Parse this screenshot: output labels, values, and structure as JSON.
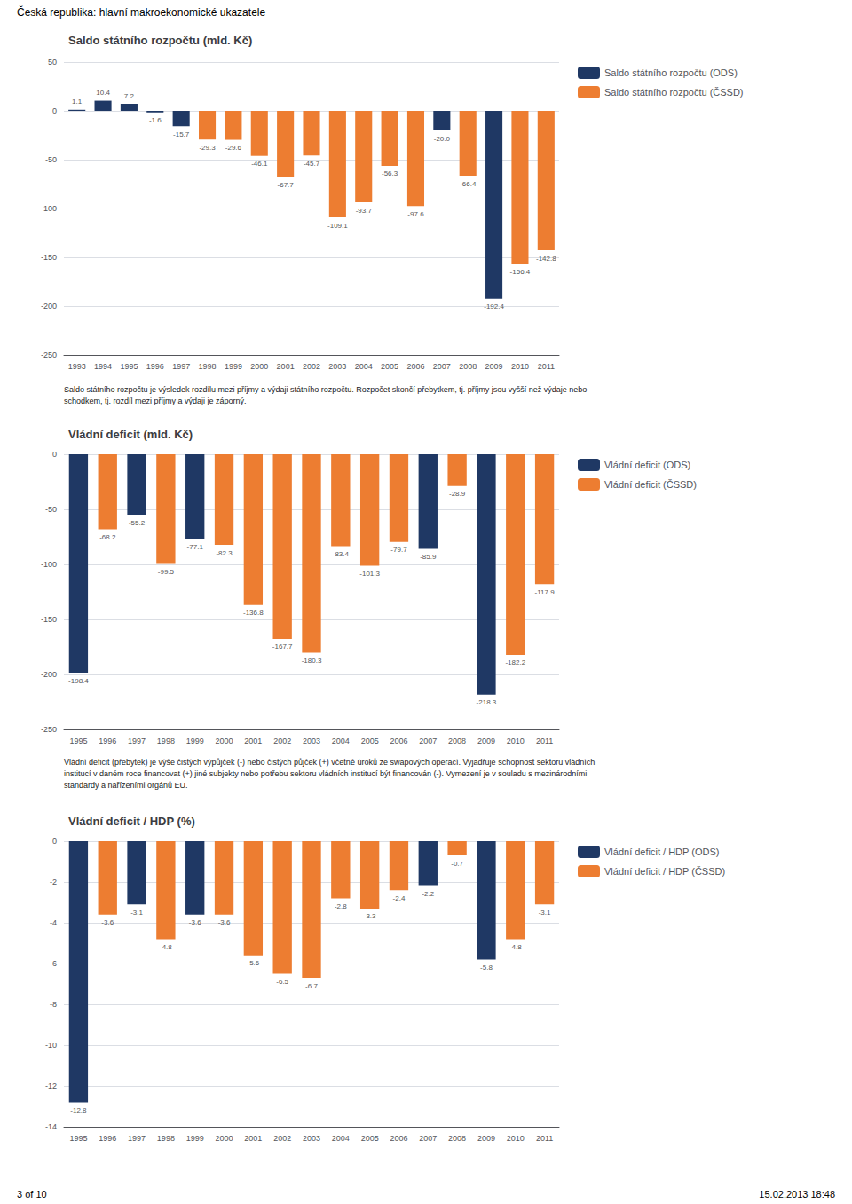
{
  "title": "Česká republika: hlavní makroekonomické ukazatele",
  "annotations": [
    "3 of 10",
    "15.02.2013 18:48"
  ],
  "chart_data": [
    {
      "type": "bar",
      "title": "Saldo státního rozpočtu (mld. Kč)",
      "categories": [
        1993,
        1994,
        1995,
        1996,
        1997,
        1998,
        1999,
        2000,
        2001,
        2002,
        2003,
        2004,
        2005,
        2006,
        2007,
        2008,
        2009,
        2010,
        2011
      ],
      "series": [
        {
          "name": "Saldo státního rozpočtu (ODS)",
          "color": "#1F3864",
          "values": [
            1.1,
            10.4,
            7.2,
            -1.6,
            -15.7,
            null,
            null,
            null,
            null,
            null,
            null,
            null,
            null,
            null,
            -20.0,
            null,
            -192.4,
            null,
            null
          ],
          "value_labels": [
            "1.1",
            "10.4",
            "7.2",
            "-1.6",
            "-15.7",
            null,
            null,
            null,
            null,
            null,
            null,
            null,
            null,
            null,
            "-20.0",
            null,
            "-192.4",
            null,
            null
          ]
        },
        {
          "name": "Saldo státního rozpočtu (ČSSD)",
          "color": "#ED7D31",
          "values": [
            null,
            null,
            null,
            null,
            null,
            -29.3,
            -29.6,
            -46.1,
            -67.7,
            -45.7,
            -109.1,
            -93.7,
            -56.3,
            -97.6,
            null,
            -66.4,
            null,
            -156.4,
            -142.8
          ]
        }
      ],
      "ylim": [
        -250,
        50
      ],
      "yticks": [
        50,
        0,
        -50,
        -100,
        -150,
        -200,
        -250
      ],
      "grid": true,
      "legend": "right",
      "data_labels": true,
      "annotations": [
        "Saldo státního rozpočtu je výsledek rozdílu mezi příjmy a výdaji státního rozpočtu. Rozpočet skončí přebytkem, tj. příjmy jsou vyšší než výdaje nebo\nschodkem, tj. rozdíl mezi příjmy a výdaji je záporný."
      ]
    },
    {
      "type": "bar",
      "title": "Vládní deficit (mld. Kč)",
      "categories": [
        1995,
        1996,
        1997,
        1998,
        1999,
        2000,
        2001,
        2002,
        2003,
        2004,
        2005,
        2006,
        2007,
        2008,
        2009,
        2010,
        2011
      ],
      "series": [
        {
          "name": "Vládní deficit (ODS)",
          "color": "#1F3864",
          "values": [
            -198.4,
            null,
            -55.2,
            null,
            -77.1,
            null,
            null,
            null,
            null,
            null,
            null,
            null,
            -85.9,
            null,
            -218.3,
            null,
            null
          ]
        },
        {
          "name": "Vládní deficit (ČSSD)",
          "color": "#ED7D31",
          "values": [
            null,
            -68.2,
            null,
            -99.5,
            null,
            -82.3,
            -136.8,
            -167.7,
            -180.3,
            -83.4,
            -101.3,
            -79.7,
            null,
            -28.9,
            null,
            -182.2,
            -117.9
          ]
        }
      ],
      "ylim": [
        -250,
        0
      ],
      "yticks": [
        0,
        -50,
        -100,
        -150,
        -200,
        -250
      ],
      "grid": true,
      "legend": "right",
      "data_labels": true,
      "annotations": [
        "Vládní deficit (přebytek) je výše čistých výpůjček (-) nebo čistých půjček (+) včetně úroků ze swapových operací. Vyjadřuje schopnost sektoru vládních\ninstitucí v daném roce financovat (+) jiné subjekty nebo potřebu sektoru vládních institucí být financován (-). Vymezení je v souladu s mezinárodními\nstandardy a nařízeními orgánů EU."
      ]
    },
    {
      "type": "bar",
      "title": "Vládní deficit / HDP (%)",
      "categories": [
        1995,
        1996,
        1997,
        1998,
        1999,
        2000,
        2001,
        2002,
        2003,
        2004,
        2005,
        2006,
        2007,
        2008,
        2009,
        2010,
        2011
      ],
      "series": [
        {
          "name": "Vládní deficit / HDP (ODS)",
          "color": "#1F3864",
          "values": [
            -12.8,
            null,
            -3.1,
            null,
            -3.6,
            null,
            null,
            null,
            null,
            null,
            null,
            null,
            -2.2,
            null,
            -5.8,
            null,
            null
          ]
        },
        {
          "name": "Vládní deficit / HDP (ČSSD)",
          "color": "#ED7D31",
          "values": [
            null,
            -3.6,
            null,
            -4.8,
            null,
            -3.6,
            -5.6,
            -6.5,
            -6.7,
            -2.8,
            -3.3,
            -2.4,
            null,
            -0.7,
            null,
            -4.8,
            -3.1
          ]
        }
      ],
      "ylim": [
        -14,
        0
      ],
      "yticks": [
        0,
        -2,
        -4,
        -6,
        -8,
        -10,
        -12,
        -14
      ],
      "grid": true,
      "legend": "right",
      "data_labels": true
    }
  ]
}
